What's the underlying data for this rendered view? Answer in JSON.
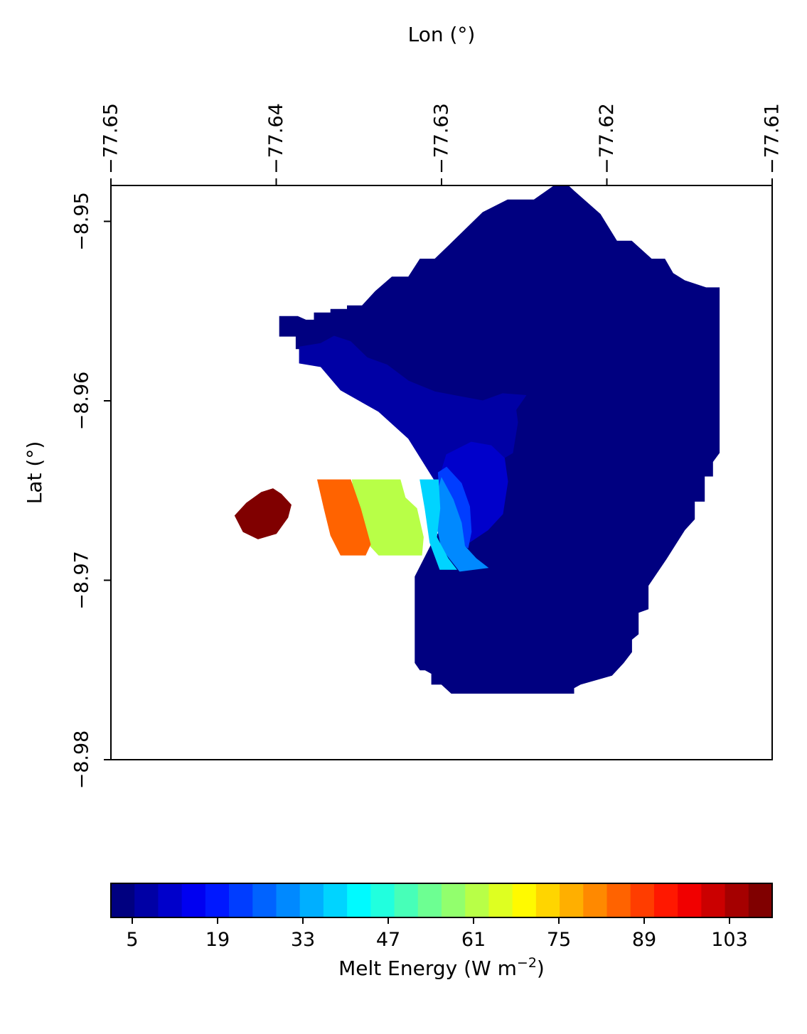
{
  "chart_data": {
    "type": "heatmap",
    "title": "",
    "xlabel": "Lon (°)",
    "ylabel": "Lat (°)",
    "x_axis_position": "top",
    "xlim": [
      -77.65,
      -77.61
    ],
    "ylim": [
      -8.98,
      -8.948
    ],
    "xticks": [
      "−77.65",
      "−77.64",
      "−77.63",
      "−77.62",
      "−77.61"
    ],
    "xtick_values": [
      -77.65,
      -77.64,
      -77.63,
      -77.62,
      -77.61
    ],
    "yticks": [
      "−8.95",
      "−8.96",
      "−8.97",
      "−8.98"
    ],
    "ytick_values": [
      -8.95,
      -8.96,
      -8.97,
      -8.98
    ],
    "grid": false,
    "colormap": "jet",
    "colorbar": {
      "label": "Melt Energy (W m",
      "label_superscript": "−2",
      "label_suffix": ")",
      "placement": "bottom",
      "min": 1.5,
      "max": 110.0,
      "levels": 28,
      "ticks": [
        "5",
        "19",
        "33",
        "47",
        "61",
        "75",
        "89",
        "103"
      ],
      "tick_values": [
        5,
        19,
        33,
        47,
        61,
        75,
        89,
        103
      ]
    },
    "regions": [
      {
        "value": 2,
        "polygon": [
          [
            -77.6398,
            -8.9553
          ],
          [
            -77.6387,
            -8.9553
          ],
          [
            -77.6382,
            -8.9555
          ],
          [
            -77.6377,
            -8.9555
          ],
          [
            -77.6377,
            -8.9551
          ],
          [
            -77.6367,
            -8.9551
          ],
          [
            -77.6367,
            -8.9549
          ],
          [
            -77.6357,
            -8.9549
          ],
          [
            -77.6357,
            -8.9547
          ],
          [
            -77.6348,
            -8.9547
          ],
          [
            -77.634,
            -8.9539
          ],
          [
            -77.633,
            -8.9531
          ],
          [
            -77.632,
            -8.9531
          ],
          [
            -77.6313,
            -8.9521
          ],
          [
            -77.6304,
            -8.9521
          ],
          [
            -77.6295,
            -8.9513
          ],
          [
            -77.6275,
            -8.9495
          ],
          [
            -77.626,
            -8.9488
          ],
          [
            -77.6244,
            -8.9488
          ],
          [
            -77.6227,
            -8.9477
          ],
          [
            -77.622,
            -8.9483
          ],
          [
            -77.6204,
            -8.9496
          ],
          [
            -77.6194,
            -8.9511
          ],
          [
            -77.6185,
            -8.9511
          ],
          [
            -77.6173,
            -8.9521
          ],
          [
            -77.6165,
            -8.9521
          ],
          [
            -77.616,
            -8.9529
          ],
          [
            -77.6153,
            -8.9533
          ],
          [
            -77.614,
            -8.9537
          ],
          [
            -77.6132,
            -8.9537
          ],
          [
            -77.6132,
            -8.9629
          ],
          [
            -77.6136,
            -8.9634
          ],
          [
            -77.6136,
            -8.9642
          ],
          [
            -77.6141,
            -8.9642
          ],
          [
            -77.6141,
            -8.9656
          ],
          [
            -77.6147,
            -8.9656
          ],
          [
            -77.6147,
            -8.9666
          ],
          [
            -77.6153,
            -8.9672
          ],
          [
            -77.6164,
            -8.9688
          ],
          [
            -77.6175,
            -8.9703
          ],
          [
            -77.6175,
            -8.9716
          ],
          [
            -77.6181,
            -8.9718
          ],
          [
            -77.6181,
            -8.973
          ],
          [
            -77.6185,
            -8.9733
          ],
          [
            -77.6185,
            -8.974
          ],
          [
            -77.619,
            -8.9746
          ],
          [
            -77.6197,
            -8.9753
          ],
          [
            -77.6216,
            -8.9758
          ],
          [
            -77.622,
            -8.976
          ],
          [
            -77.622,
            -8.9763
          ],
          [
            -77.6234,
            -8.9763
          ],
          [
            -77.6294,
            -8.9763
          ],
          [
            -77.63,
            -8.9758
          ],
          [
            -77.6306,
            -8.9758
          ],
          [
            -77.6306,
            -8.9752
          ],
          [
            -77.631,
            -8.975
          ],
          [
            -77.6313,
            -8.975
          ],
          [
            -77.6316,
            -8.9746
          ],
          [
            -77.6316,
            -8.9732
          ],
          [
            -77.6316,
            -8.9698
          ],
          [
            -77.6305,
            -8.9678
          ],
          [
            -77.6294,
            -8.9663
          ],
          [
            -77.6296,
            -8.9638
          ],
          [
            -77.6297,
            -8.9623
          ],
          [
            -77.6318,
            -8.9618
          ],
          [
            -77.6323,
            -8.9613
          ],
          [
            -77.6322,
            -8.9594
          ],
          [
            -77.6333,
            -8.959
          ],
          [
            -77.6348,
            -8.9586
          ],
          [
            -77.636,
            -8.958
          ],
          [
            -77.6374,
            -8.958
          ],
          [
            -77.6377,
            -8.9571
          ],
          [
            -77.6388,
            -8.9571
          ],
          [
            -77.6388,
            -8.9564
          ],
          [
            -77.6398,
            -8.9564
          ],
          [
            -77.6398,
            -8.9558
          ]
        ]
      },
      {
        "value": 6,
        "polygon": [
          [
            -77.6386,
            -8.957
          ],
          [
            -77.6373,
            -8.9568
          ],
          [
            -77.6365,
            -8.9564
          ],
          [
            -77.6355,
            -8.9567
          ],
          [
            -77.6345,
            -8.9576
          ],
          [
            -77.6333,
            -8.958
          ],
          [
            -77.632,
            -8.9589
          ],
          [
            -77.6304,
            -8.9595
          ],
          [
            -77.6275,
            -8.96
          ],
          [
            -77.6263,
            -8.9596
          ],
          [
            -77.6249,
            -8.9597
          ],
          [
            -77.6255,
            -8.9605
          ],
          [
            -77.6254,
            -8.9612
          ],
          [
            -77.6257,
            -8.9629
          ],
          [
            -77.627,
            -8.9636
          ],
          [
            -77.6274,
            -8.965
          ],
          [
            -77.6286,
            -8.9662
          ],
          [
            -77.6291,
            -8.9655
          ],
          [
            -77.6303,
            -8.9646
          ],
          [
            -77.632,
            -8.9621
          ],
          [
            -77.6338,
            -8.9606
          ],
          [
            -77.6361,
            -8.9594
          ],
          [
            -77.6373,
            -8.9581
          ],
          [
            -77.6386,
            -8.9579
          ]
        ]
      },
      {
        "value": 12,
        "polygon": [
          [
            -77.6297,
            -8.963
          ],
          [
            -77.6282,
            -8.9623
          ],
          [
            -77.627,
            -8.9625
          ],
          [
            -77.6262,
            -8.9632
          ],
          [
            -77.626,
            -8.9645
          ],
          [
            -77.6263,
            -8.9663
          ],
          [
            -77.6272,
            -8.9672
          ],
          [
            -77.6285,
            -8.968
          ],
          [
            -77.6295,
            -8.9664
          ],
          [
            -77.6301,
            -8.9642
          ]
        ]
      },
      {
        "value": 22,
        "polygon": [
          [
            -77.6297,
            -8.9637
          ],
          [
            -77.6288,
            -8.9646
          ],
          [
            -77.6283,
            -8.9659
          ],
          [
            -77.6282,
            -8.9673
          ],
          [
            -77.6284,
            -8.9682
          ],
          [
            -77.6296,
            -8.9675
          ],
          [
            -77.6301,
            -8.9655
          ],
          [
            -77.6302,
            -8.964
          ]
        ]
      },
      {
        "value": 30,
        "polygon": [
          [
            -77.63,
            -8.9643
          ],
          [
            -77.6293,
            -8.9655
          ],
          [
            -77.6288,
            -8.9668
          ],
          [
            -77.6286,
            -8.9681
          ],
          [
            -77.6279,
            -8.9688
          ],
          [
            -77.6272,
            -8.9693
          ],
          [
            -77.6289,
            -8.9695
          ],
          [
            -77.63,
            -8.9682
          ],
          [
            -77.6305,
            -8.966
          ]
        ]
      },
      {
        "value": 38,
        "polygon": [
          [
            -77.6313,
            -8.9644
          ],
          [
            -77.6302,
            -8.9644
          ],
          [
            -77.6301,
            -8.966
          ],
          [
            -77.6303,
            -8.9676
          ],
          [
            -77.6296,
            -8.9688
          ],
          [
            -77.6291,
            -8.9694
          ],
          [
            -77.6301,
            -8.9694
          ],
          [
            -77.6307,
            -8.9679
          ],
          [
            -77.631,
            -8.966
          ]
        ]
      },
      {
        "value": 60,
        "polygon": [
          [
            -77.6354,
            -8.9644
          ],
          [
            -77.6325,
            -8.9644
          ],
          [
            -77.6322,
            -8.9654
          ],
          [
            -77.6315,
            -8.966
          ],
          [
            -77.6311,
            -8.9676
          ],
          [
            -77.6312,
            -8.9686
          ],
          [
            -77.6338,
            -8.9686
          ],
          [
            -77.6346,
            -8.9678
          ],
          [
            -77.6352,
            -8.966
          ]
        ]
      },
      {
        "value": 85,
        "polygon": [
          [
            -77.6375,
            -8.9644
          ],
          [
            -77.6355,
            -8.9644
          ],
          [
            -77.6349,
            -8.966
          ],
          [
            -77.6343,
            -8.968
          ],
          [
            -77.6346,
            -8.9686
          ],
          [
            -77.6361,
            -8.9686
          ],
          [
            -77.6367,
            -8.9675
          ],
          [
            -77.6371,
            -8.966
          ]
        ]
      },
      {
        "value": 108,
        "polygon": [
          [
            -77.6402,
            -8.9649
          ],
          [
            -77.6397,
            -8.9652
          ],
          [
            -77.6391,
            -8.9658
          ],
          [
            -77.6393,
            -8.9665
          ],
          [
            -77.64,
            -8.9674
          ],
          [
            -77.6411,
            -8.9677
          ],
          [
            -77.642,
            -8.9673
          ],
          [
            -77.6425,
            -8.9664
          ],
          [
            -77.6418,
            -8.9657
          ],
          [
            -77.6409,
            -8.9651
          ]
        ]
      }
    ]
  }
}
